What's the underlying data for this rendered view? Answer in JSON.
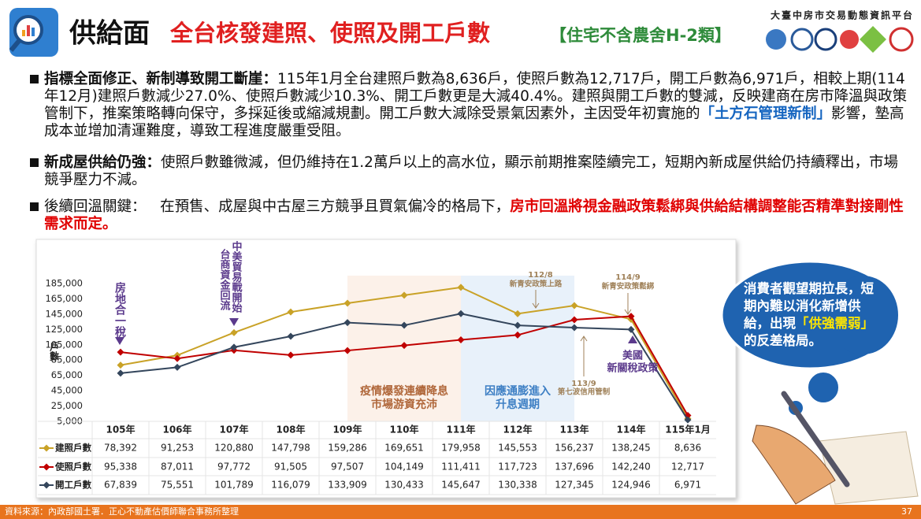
{
  "header": {
    "title": "供給面",
    "subtitle": "全台核發建照、使照及開工戶數",
    "note": "【住宅不含農舍H-2類】",
    "org": "大臺中房市交易動態資訊平台"
  },
  "bullets": [
    {
      "lead": "指標全面修正、新制導致開工斷崖：",
      "text": [
        "115年1月全台建照戶數為8,636戶，使照戶數為12,717戶，開工戶數為6,971戶，相較上期(114年12月)建照戶數減少27.0%、使照戶數減少10.3%、開工戶數更是大減40.4%。建照與開工戶數的雙減，反映建商在房市降溫與政策管制下，推案策略轉向保守，多採延後或縮減規劃。開工戶數大減除受景氣因素外，主因受年初實施的",
        "影響，墊高成本並增加清運難度，導致工程進度嚴重受阻。"
      ],
      "highlight": "「土方石管理新制」"
    },
    {
      "lead": "新成屋供給仍強：",
      "text": [
        "使照戶數雖微減，但仍維持在1.2萬戶以上的高水位，顯示前期推案陸續完工，短期內新成屋供給仍持續釋出，市場競爭壓力不減。"
      ]
    },
    {
      "lead": "後續回溫關鍵：",
      "text": [
        "在預售、成屋與中古屋三方競爭且買氣偏冷的格局下，"
      ],
      "highlight": "房市回溫將視金融政策鬆綁與供給結構調整能否精準對接剛性需求而定。"
    }
  ],
  "callout": {
    "text": [
      "消費者觀望期拉長，短期內難以消化新增供給，出現",
      "的反差格局。"
    ],
    "highlight": "「供強需弱」"
  },
  "footer": {
    "source": "資料來源：內政部國土署．正心不動產估價師聯合事務所整理",
    "page": "37"
  },
  "chart_data": {
    "type": "line",
    "y_label": "戶數",
    "categories": [
      "105年",
      "106年",
      "107年",
      "108年",
      "109年",
      "110年",
      "111年",
      "112年",
      "113年",
      "114年",
      "115年1月"
    ],
    "series": [
      {
        "name": "建照戶數",
        "color": "#c9a227",
        "values": [
          78392,
          91253,
          120880,
          147798,
          159286,
          169651,
          179958,
          145553,
          156237,
          138245,
          8636
        ],
        "value_labels": [
          "78,392",
          "91,253",
          "120,880",
          "147,798",
          "159,286",
          "169,651",
          "179,958",
          "145,553",
          "156,237",
          "138,245",
          "8,636"
        ]
      },
      {
        "name": "使照戶數",
        "color": "#c00000",
        "values": [
          95338,
          87011,
          97772,
          91505,
          97507,
          104149,
          111411,
          117723,
          137696,
          142240,
          12717
        ],
        "value_labels": [
          "95,338",
          "87,011",
          "97,772",
          "91,505",
          "97,507",
          "104,149",
          "111,411",
          "117,723",
          "137,696",
          "142,240",
          "12,717"
        ]
      },
      {
        "name": "開工戶數",
        "color": "#34465c",
        "values": [
          67839,
          75551,
          101789,
          116079,
          133909,
          130433,
          145647,
          130338,
          127345,
          124946,
          6971
        ],
        "value_labels": [
          "67,839",
          "75,551",
          "101,789",
          "116,079",
          "133,909",
          "130,433",
          "145,647",
          "130,338",
          "127,345",
          "124,946",
          "6,971"
        ]
      }
    ],
    "ylim": [
      5000,
      185000
    ],
    "yticks": [
      {
        "value": 5000,
        "label": "5,000"
      },
      {
        "value": 25000,
        "label": "25,000"
      },
      {
        "value": 45000,
        "label": "45,000"
      },
      {
        "value": 65000,
        "label": "65,000"
      },
      {
        "value": 85000,
        "label": "85,000"
      },
      {
        "value": 105000,
        "label": "105,000"
      },
      {
        "value": 125000,
        "label": "125,000"
      },
      {
        "value": 145000,
        "label": "145,000"
      },
      {
        "value": 165000,
        "label": "165,000"
      },
      {
        "value": 185000,
        "label": "185,000"
      }
    ],
    "grid": false,
    "annotations": [
      "房地合一稅",
      "中美貿易戰開始",
      "台商資金回流",
      "112/8",
      "新青安政策上路",
      "114/9",
      "新青安政策鬆綁",
      "113/9",
      "第七波信用管制",
      "美國",
      "新關稅政策",
      "疫情爆發連續降息",
      "市場游資充沛",
      "因應通膨進入",
      "升息週期"
    ]
  }
}
